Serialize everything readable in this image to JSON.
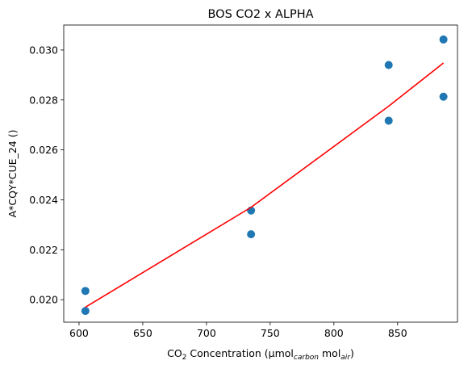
{
  "chart_data": {
    "type": "scatter",
    "title": "BOS CO2 x ALPHA",
    "xlabel": {
      "prefix": "CO",
      "sub1": "2",
      "middle": " Concentration (µmol",
      "sub2": "carbon",
      "middle2": " mol",
      "sub3": "air",
      "suffix": ")"
    },
    "ylabel": "A*CQY*CUE_24 ()",
    "xlim": [
      588,
      897
    ],
    "ylim": [
      0.0191,
      0.031
    ],
    "x_ticks": [
      600,
      650,
      700,
      750,
      800,
      850
    ],
    "x_tick_labels": [
      "600",
      "650",
      "700",
      "750",
      "800",
      "850"
    ],
    "y_ticks": [
      0.02,
      0.022,
      0.024,
      0.026,
      0.028,
      0.03
    ],
    "y_tick_labels": [
      "0.020",
      "0.022",
      "0.024",
      "0.026",
      "0.028",
      "0.030"
    ],
    "grid": false,
    "series": [
      {
        "type": "scatter",
        "color": "#1f77b4",
        "points": [
          {
            "x": 605,
            "y": 0.02035
          },
          {
            "x": 605,
            "y": 0.01955
          },
          {
            "x": 735,
            "y": 0.02357
          },
          {
            "x": 735,
            "y": 0.02262
          },
          {
            "x": 843,
            "y": 0.0294
          },
          {
            "x": 843,
            "y": 0.02717
          },
          {
            "x": 886,
            "y": 0.03042
          },
          {
            "x": 886,
            "y": 0.02813
          }
        ]
      },
      {
        "type": "line",
        "color": "#ff0000",
        "points": [
          {
            "x": 605,
            "y": 0.0197
          },
          {
            "x": 735,
            "y": 0.0237
          },
          {
            "x": 843,
            "y": 0.02775
          },
          {
            "x": 886,
            "y": 0.02948
          }
        ]
      }
    ]
  }
}
